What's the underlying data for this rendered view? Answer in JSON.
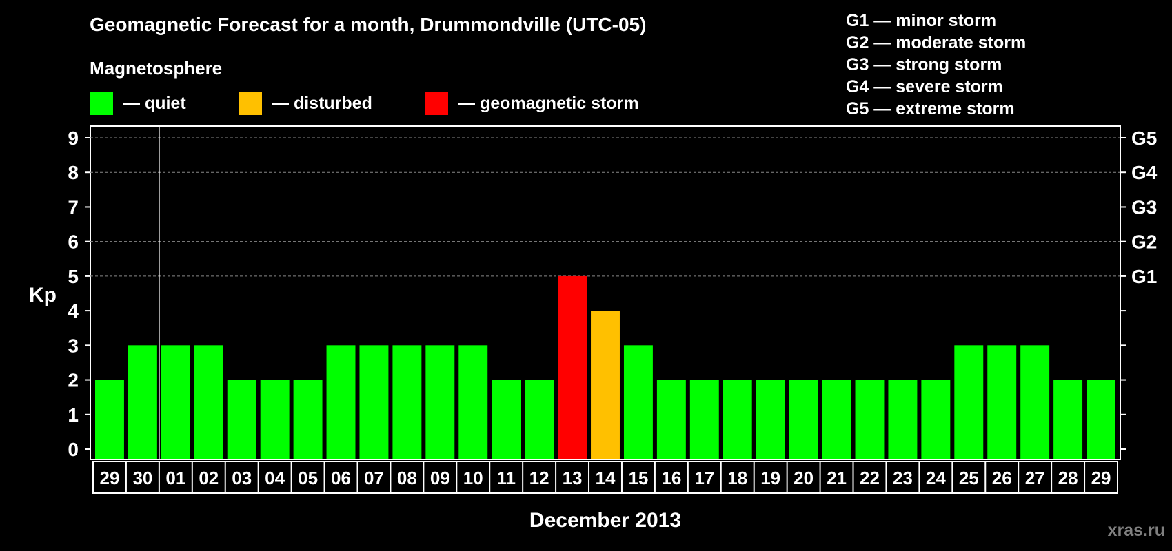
{
  "title": "Geomagnetic Forecast for a month, Drummondville (UTC-05)",
  "section_label": "Magnetosphere",
  "legend": [
    {
      "label": "— quiet",
      "color": "#00ff00"
    },
    {
      "label": "— disturbed",
      "color": "#ffc000"
    },
    {
      "label": "— geomagnetic storm",
      "color": "#ff0000"
    }
  ],
  "storm_scale": [
    "G1 — minor storm",
    "G2 — moderate storm",
    "G3 — strong storm",
    "G4 — severe storm",
    "G5 — extreme storm"
  ],
  "watermark": "xras.ru",
  "colors": {
    "quiet": "#00ff00",
    "disturbed": "#ffc000",
    "storm": "#ff0000"
  },
  "chart_data": {
    "type": "bar",
    "xlabel": "December 2013",
    "ylabel": "Kp",
    "ylim": [
      0,
      9
    ],
    "yticks": [
      "0",
      "1",
      "2",
      "3",
      "4",
      "5",
      "6",
      "7",
      "8",
      "9"
    ],
    "right_ticks": [
      {
        "value": 5,
        "label": "G1"
      },
      {
        "value": 6,
        "label": "G2"
      },
      {
        "value": 7,
        "label": "G3"
      },
      {
        "value": 8,
        "label": "G4"
      },
      {
        "value": 9,
        "label": "G5"
      }
    ],
    "grid": "dashed at Kp 5-9",
    "month_separator_after": "30",
    "categories": [
      "29",
      "30",
      "01",
      "02",
      "03",
      "04",
      "05",
      "06",
      "07",
      "08",
      "09",
      "10",
      "11",
      "12",
      "13",
      "14",
      "15",
      "16",
      "17",
      "18",
      "19",
      "20",
      "21",
      "22",
      "23",
      "24",
      "25",
      "26",
      "27",
      "28",
      "29"
    ],
    "values": [
      2,
      3,
      3,
      3,
      2,
      2,
      2,
      3,
      3,
      3,
      3,
      3,
      2,
      2,
      5,
      4,
      3,
      2,
      2,
      2,
      2,
      2,
      2,
      2,
      2,
      2,
      3,
      3,
      3,
      2,
      2
    ],
    "status": [
      "quiet",
      "quiet",
      "quiet",
      "quiet",
      "quiet",
      "quiet",
      "quiet",
      "quiet",
      "quiet",
      "quiet",
      "quiet",
      "quiet",
      "quiet",
      "quiet",
      "storm",
      "disturbed",
      "quiet",
      "quiet",
      "quiet",
      "quiet",
      "quiet",
      "quiet",
      "quiet",
      "quiet",
      "quiet",
      "quiet",
      "quiet",
      "quiet",
      "quiet",
      "quiet",
      "quiet"
    ]
  }
}
